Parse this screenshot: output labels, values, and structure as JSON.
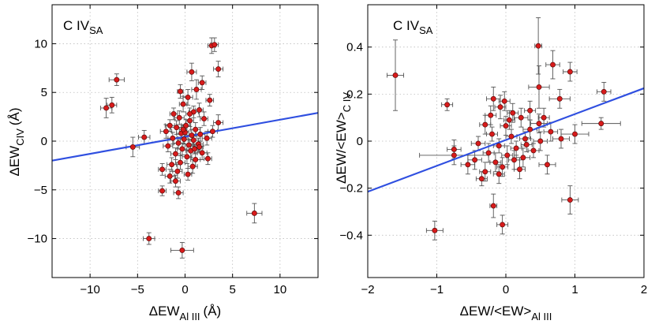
{
  "chart_data": [
    {
      "type": "scatter",
      "annotation": {
        "main": "C IV",
        "sub": "SA"
      },
      "xlabel": {
        "main": "ΔEW",
        "sub": "Al III",
        "unit": "(Å)"
      },
      "ylabel": {
        "main": "ΔEW",
        "sub": "CIV",
        "unit": "(Å)"
      },
      "xlim": [
        -14,
        14
      ],
      "ylim": [
        -14,
        14
      ],
      "xticks": [
        -10,
        -5,
        0,
        5,
        10
      ],
      "yticks": [
        -10,
        -5,
        0,
        5,
        10
      ],
      "grid": true,
      "fit_line": {
        "slope": 0.175,
        "intercept": 0.45
      },
      "points": [
        {
          "x": -7.2,
          "y": 6.3,
          "xerr": 0.8,
          "yerr": 0.6
        },
        {
          "x": -8.3,
          "y": 3.4,
          "xerr": 0.6,
          "yerr": 1.0
        },
        {
          "x": -7.7,
          "y": 3.7,
          "xerr": 0.5,
          "yerr": 0.8
        },
        {
          "x": -5.5,
          "y": -0.6,
          "xerr": 0.7,
          "yerr": 1.0
        },
        {
          "x": -4.3,
          "y": 0.4,
          "xerr": 0.6,
          "yerr": 0.7
        },
        {
          "x": -3.8,
          "y": -10.0,
          "xerr": 0.6,
          "yerr": 0.6
        },
        {
          "x": -0.3,
          "y": -11.2,
          "xerr": 1.2,
          "yerr": 0.8
        },
        {
          "x": 7.3,
          "y": -7.4,
          "xerr": 0.8,
          "yerr": 1.0
        },
        {
          "x": 2.8,
          "y": 9.8,
          "xerr": 0.4,
          "yerr": 0.8
        },
        {
          "x": 3.1,
          "y": 9.9,
          "xerr": 0.4,
          "yerr": 0.7
        },
        {
          "x": 3.5,
          "y": 7.4,
          "xerr": 0.5,
          "yerr": 0.8
        },
        {
          "x": 0.7,
          "y": 7.1,
          "xerr": 0.5,
          "yerr": 0.9
        },
        {
          "x": 1.8,
          "y": 6.0,
          "xerr": 0.4,
          "yerr": 0.7
        },
        {
          "x": -0.5,
          "y": 5.1,
          "xerr": 0.3,
          "yerr": 0.7
        },
        {
          "x": 1.2,
          "y": 5.3,
          "xerr": 0.5,
          "yerr": 1.0
        },
        {
          "x": 0.3,
          "y": 4.5,
          "xerr": 0.5,
          "yerr": 0.8
        },
        {
          "x": 2.6,
          "y": 4.2,
          "xerr": 0.4,
          "yerr": 0.6
        },
        {
          "x": -0.2,
          "y": 3.8,
          "xerr": 0.4,
          "yerr": 0.8
        },
        {
          "x": 1.5,
          "y": 3.2,
          "xerr": 0.4,
          "yerr": 0.7
        },
        {
          "x": 0.9,
          "y": 3.0,
          "xerr": 0.5,
          "yerr": 0.6
        },
        {
          "x": -1.2,
          "y": 2.8,
          "xerr": 0.4,
          "yerr": 0.6
        },
        {
          "x": -0.6,
          "y": 2.4,
          "xerr": 0.5,
          "yerr": 0.7
        },
        {
          "x": 0.5,
          "y": 2.1,
          "xerr": 0.4,
          "yerr": 0.6
        },
        {
          "x": 2.0,
          "y": 2.3,
          "xerr": 0.4,
          "yerr": 0.7
        },
        {
          "x": 3.5,
          "y": 1.9,
          "xerr": 0.5,
          "yerr": 0.8
        },
        {
          "x": -1.6,
          "y": 1.6,
          "xerr": 0.5,
          "yerr": 0.6
        },
        {
          "x": -0.9,
          "y": 1.4,
          "xerr": 0.6,
          "yerr": 0.7
        },
        {
          "x": 0.1,
          "y": 1.6,
          "xerr": 0.5,
          "yerr": 0.6
        },
        {
          "x": 1.1,
          "y": 1.2,
          "xerr": 0.5,
          "yerr": 0.7
        },
        {
          "x": -2.0,
          "y": 1.0,
          "xerr": 0.6,
          "yerr": 0.7
        },
        {
          "x": -0.4,
          "y": 0.8,
          "xerr": 0.5,
          "yerr": 0.6
        },
        {
          "x": 0.7,
          "y": 0.6,
          "xerr": 0.5,
          "yerr": 0.6
        },
        {
          "x": 1.6,
          "y": 0.7,
          "xerr": 0.5,
          "yerr": 0.7
        },
        {
          "x": -1.3,
          "y": 0.3,
          "xerr": 0.5,
          "yerr": 0.6
        },
        {
          "x": -0.1,
          "y": 0.2,
          "xerr": 0.4,
          "yerr": 0.5
        },
        {
          "x": 0.9,
          "y": 0.1,
          "xerr": 0.5,
          "yerr": 0.6
        },
        {
          "x": 2.3,
          "y": 0.3,
          "xerr": 0.5,
          "yerr": 0.7
        },
        {
          "x": -0.7,
          "y": -0.2,
          "xerr": 0.5,
          "yerr": 0.6
        },
        {
          "x": 0.4,
          "y": -0.4,
          "xerr": 0.4,
          "yerr": 0.6
        },
        {
          "x": 1.4,
          "y": -0.3,
          "xerr": 0.5,
          "yerr": 0.6
        },
        {
          "x": -1.8,
          "y": -0.5,
          "xerr": 0.5,
          "yerr": 0.6
        },
        {
          "x": -0.3,
          "y": -0.8,
          "xerr": 0.5,
          "yerr": 0.6
        },
        {
          "x": 0.6,
          "y": -1.0,
          "xerr": 0.5,
          "yerr": 0.7
        },
        {
          "x": 1.8,
          "y": -1.2,
          "xerr": 0.5,
          "yerr": 0.7
        },
        {
          "x": -1.0,
          "y": -1.3,
          "xerr": 0.5,
          "yerr": 0.6
        },
        {
          "x": 0.2,
          "y": -1.6,
          "xerr": 0.5,
          "yerr": 0.7
        },
        {
          "x": 1.1,
          "y": -1.9,
          "xerr": 0.5,
          "yerr": 0.7
        },
        {
          "x": -0.5,
          "y": -2.2,
          "xerr": 0.5,
          "yerr": 0.7
        },
        {
          "x": 2.4,
          "y": -1.8,
          "xerr": 0.4,
          "yerr": 0.6
        },
        {
          "x": -2.4,
          "y": -2.9,
          "xerr": 0.4,
          "yerr": 0.6
        },
        {
          "x": -1.4,
          "y": -2.4,
          "xerr": 0.5,
          "yerr": 0.7
        },
        {
          "x": 0.8,
          "y": -2.6,
          "xerr": 0.5,
          "yerr": 0.7
        },
        {
          "x": -0.8,
          "y": -3.1,
          "xerr": 0.5,
          "yerr": 0.7
        },
        {
          "x": 0.3,
          "y": -3.4,
          "xerr": 0.4,
          "yerr": 0.6
        },
        {
          "x": -1.6,
          "y": -3.6,
          "xerr": 0.5,
          "yerr": 0.7
        },
        {
          "x": 1.5,
          "y": -0.6,
          "xerr": 0.4,
          "yerr": 0.5
        },
        {
          "x": 0.0,
          "y": 0.9,
          "xerr": 0.4,
          "yerr": 0.5
        },
        {
          "x": -2.4,
          "y": -5.1,
          "xerr": 0.4,
          "yerr": 0.5
        },
        {
          "x": -0.7,
          "y": -5.3,
          "xerr": 0.5,
          "yerr": 0.6
        },
        {
          "x": -1.0,
          "y": -4.1,
          "xerr": 0.5,
          "yerr": 0.6
        },
        {
          "x": 0.5,
          "y": 2.8,
          "xerr": 0.4,
          "yerr": 0.6
        },
        {
          "x": 2.9,
          "y": 1.0,
          "xerr": 0.5,
          "yerr": 0.6
        },
        {
          "x": -0.2,
          "y": 1.2,
          "xerr": 0.4,
          "yerr": 0.5
        },
        {
          "x": 1.0,
          "y": -0.8,
          "xerr": 0.4,
          "yerr": 0.5
        }
      ]
    },
    {
      "type": "scatter",
      "annotation": {
        "main": "C IV",
        "sub": "SA"
      },
      "xlabel": {
        "main": "ΔEW/<EW>",
        "sub": "Al III",
        "unit": ""
      },
      "ylabel": {
        "main": "ΔEW/<EW>",
        "sub": "C IV",
        "unit": ""
      },
      "xlim": [
        -2,
        2
      ],
      "ylim": [
        -0.58,
        0.58
      ],
      "xticks": [
        -2,
        -1,
        0,
        1,
        2
      ],
      "yticks": [
        -0.4,
        -0.2,
        0,
        0.2,
        0.4
      ],
      "grid": true,
      "fit_line": {
        "slope": 0.11,
        "intercept": 0.005
      },
      "points": [
        {
          "x": -1.6,
          "y": 0.28,
          "xerr": 0.12,
          "yerr": 0.15
        },
        {
          "x": -0.85,
          "y": 0.155,
          "xerr": 0.08,
          "yerr": 0.025
        },
        {
          "x": -0.75,
          "y": -0.035,
          "xerr": 0.1,
          "yerr": 0.04
        },
        {
          "x": -0.75,
          "y": -0.06,
          "xerr": 0.5,
          "yerr": 0.04
        },
        {
          "x": -1.03,
          "y": -0.38,
          "xerr": 0.12,
          "yerr": 0.04
        },
        {
          "x": -0.18,
          "y": -0.275,
          "xerr": 0.05,
          "yerr": 0.05
        },
        {
          "x": -0.05,
          "y": -0.355,
          "xerr": 0.08,
          "yerr": 0.04
        },
        {
          "x": 0.93,
          "y": -0.25,
          "xerr": 0.12,
          "yerr": 0.06
        },
        {
          "x": 0.47,
          "y": 0.405,
          "xerr": 0.05,
          "yerr": 0.12
        },
        {
          "x": 0.68,
          "y": 0.325,
          "xerr": 0.1,
          "yerr": 0.06
        },
        {
          "x": 0.93,
          "y": 0.295,
          "xerr": 0.1,
          "yerr": 0.04
        },
        {
          "x": 0.48,
          "y": 0.23,
          "xerr": 0.15,
          "yerr": 0.09
        },
        {
          "x": 1.42,
          "y": 0.21,
          "xerr": 0.1,
          "yerr": 0.04
        },
        {
          "x": 0.78,
          "y": 0.18,
          "xerr": 0.15,
          "yerr": 0.04
        },
        {
          "x": 1.38,
          "y": 0.075,
          "xerr": 0.28,
          "yerr": 0.025
        },
        {
          "x": -0.18,
          "y": 0.18,
          "xerr": 0.1,
          "yerr": 0.05
        },
        {
          "x": -0.08,
          "y": 0.145,
          "xerr": 0.08,
          "yerr": 0.05
        },
        {
          "x": 0.1,
          "y": 0.12,
          "xerr": 0.08,
          "yerr": 0.04
        },
        {
          "x": 0.22,
          "y": 0.1,
          "xerr": 0.1,
          "yerr": 0.04
        },
        {
          "x": 0.48,
          "y": 0.075,
          "xerr": 0.12,
          "yerr": 0.04
        },
        {
          "x": -0.3,
          "y": 0.07,
          "xerr": 0.08,
          "yerr": 0.04
        },
        {
          "x": 0.0,
          "y": 0.065,
          "xerr": 0.08,
          "yerr": 0.04
        },
        {
          "x": 0.35,
          "y": 0.05,
          "xerr": 0.1,
          "yerr": 0.04
        },
        {
          "x": 0.65,
          "y": 0.04,
          "xerr": 0.1,
          "yerr": 0.04
        },
        {
          "x": 1.0,
          "y": 0.03,
          "xerr": 0.2,
          "yerr": 0.04
        },
        {
          "x": -0.2,
          "y": 0.03,
          "xerr": 0.08,
          "yerr": 0.03
        },
        {
          "x": 0.08,
          "y": 0.02,
          "xerr": 0.08,
          "yerr": 0.03
        },
        {
          "x": 0.28,
          "y": 0.01,
          "xerr": 0.08,
          "yerr": 0.03
        },
        {
          "x": 0.5,
          "y": 0.0,
          "xerr": 0.1,
          "yerr": 0.04
        },
        {
          "x": 0.8,
          "y": 0.01,
          "xerr": 0.12,
          "yerr": 0.04
        },
        {
          "x": -0.4,
          "y": -0.01,
          "xerr": 0.1,
          "yerr": 0.03
        },
        {
          "x": -0.1,
          "y": -0.02,
          "xerr": 0.08,
          "yerr": 0.03
        },
        {
          "x": 0.15,
          "y": -0.03,
          "xerr": 0.08,
          "yerr": 0.03
        },
        {
          "x": 0.4,
          "y": -0.04,
          "xerr": 0.08,
          "yerr": 0.03
        },
        {
          "x": -0.25,
          "y": -0.05,
          "xerr": 0.08,
          "yerr": 0.04
        },
        {
          "x": 0.02,
          "y": -0.06,
          "xerr": 0.08,
          "yerr": 0.04
        },
        {
          "x": 0.25,
          "y": -0.07,
          "xerr": 0.1,
          "yerr": 0.04
        },
        {
          "x": -0.45,
          "y": -0.08,
          "xerr": 0.1,
          "yerr": 0.04
        },
        {
          "x": -0.15,
          "y": -0.09,
          "xerr": 0.08,
          "yerr": 0.04
        },
        {
          "x": 0.6,
          "y": -0.1,
          "xerr": 0.12,
          "yerr": 0.04
        },
        {
          "x": -0.05,
          "y": -0.11,
          "xerr": 0.08,
          "yerr": 0.04
        },
        {
          "x": 0.2,
          "y": -0.12,
          "xerr": 0.08,
          "yerr": 0.04
        },
        {
          "x": -0.3,
          "y": -0.13,
          "xerr": 0.08,
          "yerr": 0.04
        },
        {
          "x": -0.1,
          "y": -0.14,
          "xerr": 0.08,
          "yerr": 0.04
        },
        {
          "x": -0.35,
          "y": -0.16,
          "xerr": 0.08,
          "yerr": 0.03
        },
        {
          "x": -0.55,
          "y": -0.1,
          "xerr": 0.1,
          "yerr": 0.04
        },
        {
          "x": 0.05,
          "y": 0.09,
          "xerr": 0.08,
          "yerr": 0.04
        },
        {
          "x": 0.35,
          "y": 0.13,
          "xerr": 0.08,
          "yerr": 0.04
        },
        {
          "x": -0.02,
          "y": 0.17,
          "xerr": 0.08,
          "yerr": 0.04
        },
        {
          "x": 0.12,
          "y": -0.08,
          "xerr": 0.08,
          "yerr": 0.04
        },
        {
          "x": 0.55,
          "y": 0.1,
          "xerr": 0.08,
          "yerr": 0.04
        },
        {
          "x": -0.22,
          "y": 0.11,
          "xerr": 0.08,
          "yerr": 0.04
        },
        {
          "x": 0.3,
          "y": -0.015,
          "xerr": 0.08,
          "yerr": 0.03
        }
      ]
    }
  ]
}
